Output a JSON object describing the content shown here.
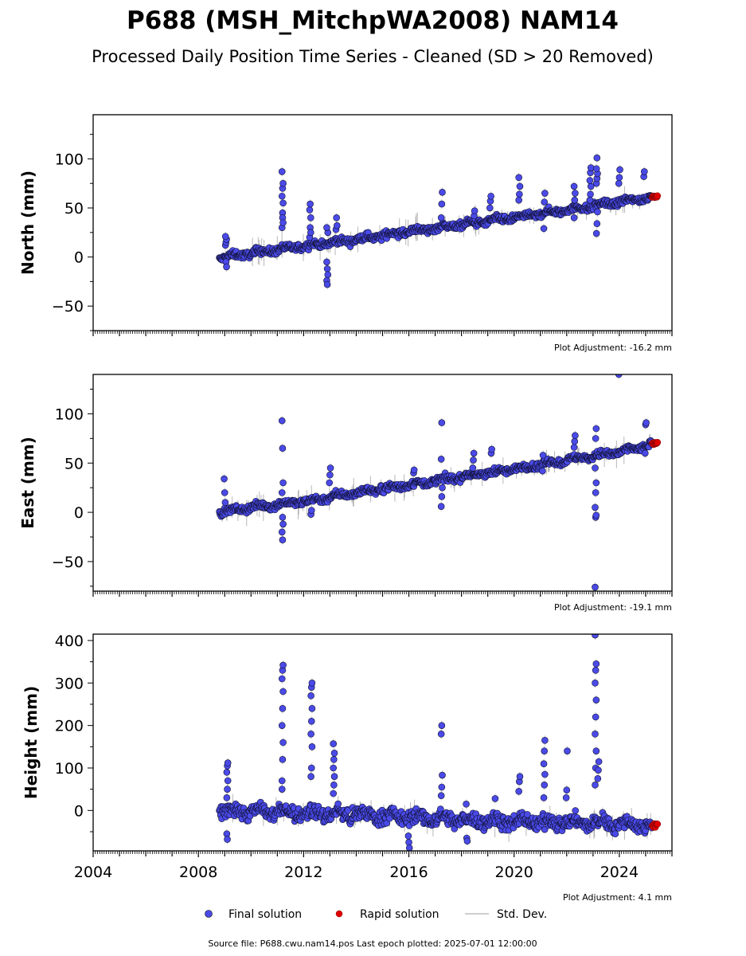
{
  "title": "P688 (MSH_MitchpWA2008) NAM14",
  "subtitle": "Processed Daily Position Time Series - Cleaned (SD > 20 Removed)",
  "source_text": "Source file: P688.cwu.nam14.pos  Last epoch plotted: 2025-07-01 12:00:00",
  "legend": {
    "final": "Final solution",
    "rapid": "Rapid solution",
    "std": "Std. Dev."
  },
  "colors": {
    "final_fill": "#4a4ae8",
    "rapid_fill": "#e00000",
    "std_line": "#9a9a9a"
  },
  "chart_data": [
    {
      "type": "scatter",
      "ylabel": "North (mm)",
      "adjustment": "Plot Adjustment: -16.2 mm",
      "xlim": [
        2004,
        2026
      ],
      "ylim": [
        -75,
        145
      ],
      "yticks": [
        -50,
        0,
        50,
        100
      ],
      "yticklabels": [
        "−50",
        "0",
        "50",
        "100"
      ],
      "trend": [
        [
          2008.8,
          -1
        ],
        [
          2010,
          4
        ],
        [
          2012,
          11
        ],
        [
          2014,
          18
        ],
        [
          2016,
          26
        ],
        [
          2018,
          33
        ],
        [
          2020,
          40
        ],
        [
          2022,
          48
        ],
        [
          2024,
          56
        ],
        [
          2025.4,
          62
        ]
      ],
      "noise": 2.5,
      "spikes": [
        {
          "x": 2009.05,
          "y": [
            12,
            15,
            18,
            21,
            -5,
            -10
          ]
        },
        {
          "x": 2011.2,
          "y": [
            30,
            45,
            55,
            62,
            70,
            75,
            87,
            40,
            35
          ]
        },
        {
          "x": 2012.25,
          "y": [
            20,
            30,
            40,
            48,
            54,
            25
          ]
        },
        {
          "x": 2012.9,
          "y": [
            -5,
            -12,
            -18,
            -24,
            -28,
            25,
            30
          ]
        },
        {
          "x": 2013.25,
          "y": [
            28,
            40,
            32
          ]
        },
        {
          "x": 2017.25,
          "y": [
            40,
            54,
            66
          ]
        },
        {
          "x": 2018.5,
          "y": [
            42,
            47
          ]
        },
        {
          "x": 2019.1,
          "y": [
            50,
            57,
            62
          ]
        },
        {
          "x": 2020.2,
          "y": [
            58,
            64,
            72,
            81
          ]
        },
        {
          "x": 2021.15,
          "y": [
            29,
            56,
            65
          ]
        },
        {
          "x": 2022.3,
          "y": [
            40,
            58,
            65,
            72
          ]
        },
        {
          "x": 2022.9,
          "y": [
            58,
            64,
            72,
            78,
            86,
            91
          ]
        },
        {
          "x": 2023.15,
          "y": [
            24,
            34,
            46,
            75,
            80,
            85,
            90,
            101
          ]
        },
        {
          "x": 2024.0,
          "y": [
            75,
            81,
            89
          ]
        },
        {
          "x": 2024.95,
          "y": [
            82,
            87
          ]
        }
      ],
      "rapid": {
        "x_start": 2025.25,
        "x_end": 2025.45,
        "y": 62
      }
    },
    {
      "type": "scatter",
      "ylabel": "East (mm)",
      "adjustment": "Plot Adjustment: -19.1 mm",
      "xlim": [
        2004,
        2026
      ],
      "ylim": [
        -80,
        140
      ],
      "yticks": [
        -50,
        0,
        50,
        100
      ],
      "yticklabels": [
        "−50",
        "0",
        "50",
        "100"
      ],
      "trend": [
        [
          2008.8,
          0
        ],
        [
          2010,
          5
        ],
        [
          2012,
          11
        ],
        [
          2014,
          20
        ],
        [
          2016,
          28
        ],
        [
          2018,
          36
        ],
        [
          2020,
          44
        ],
        [
          2022,
          53
        ],
        [
          2024,
          61
        ],
        [
          2025.4,
          70
        ]
      ],
      "noise": 2.5,
      "spikes": [
        {
          "x": 2009.0,
          "y": [
            34,
            20,
            10
          ]
        },
        {
          "x": 2011.2,
          "y": [
            93,
            65,
            30,
            20,
            -5,
            -12,
            -20,
            -28
          ]
        },
        {
          "x": 2012.3,
          "y": [
            -2,
            2
          ]
        },
        {
          "x": 2013.0,
          "y": [
            30,
            38,
            45
          ]
        },
        {
          "x": 2016.2,
          "y": [
            40,
            43
          ]
        },
        {
          "x": 2017.25,
          "y": [
            6,
            16,
            25,
            54,
            91
          ]
        },
        {
          "x": 2018.45,
          "y": [
            45,
            53,
            60
          ]
        },
        {
          "x": 2019.15,
          "y": [
            60,
            64
          ]
        },
        {
          "x": 2021.1,
          "y": [
            42,
            58
          ]
        },
        {
          "x": 2022.3,
          "y": [
            66,
            72,
            78
          ]
        },
        {
          "x": 2023.1,
          "y": [
            -76,
            -5,
            -3,
            5,
            20,
            30,
            45,
            75,
            85
          ]
        },
        {
          "x": 2024.0,
          "y": [
            140
          ]
        },
        {
          "x": 2025.0,
          "y": [
            60,
            89,
            91
          ]
        }
      ],
      "rapid": {
        "x_start": 2025.25,
        "x_end": 2025.45,
        "y": 70
      }
    },
    {
      "type": "scatter",
      "ylabel": "Height (mm)",
      "adjustment": "Plot Adjustment: 4.1 mm",
      "xlim": [
        2004,
        2026
      ],
      "ylim": [
        -95,
        415
      ],
      "yticks": [
        0,
        100,
        200,
        300,
        400
      ],
      "yticklabels": [
        "0",
        "100",
        "200",
        "300",
        "400"
      ],
      "xticks": [
        2004,
        2008,
        2012,
        2016,
        2020,
        2024
      ],
      "xticklabels": [
        "2004",
        "2008",
        "2012",
        "2016",
        "2020",
        "2024"
      ],
      "trend": [
        [
          2008.8,
          0
        ],
        [
          2012,
          -5
        ],
        [
          2016,
          -15
        ],
        [
          2018,
          -22
        ],
        [
          2020,
          -25
        ],
        [
          2022,
          -28
        ],
        [
          2024,
          -30
        ],
        [
          2025.4,
          -35
        ]
      ],
      "noise": 12,
      "spikes": [
        {
          "x": 2009.1,
          "y": [
            30,
            50,
            70,
            90,
            105,
            112,
            -55,
            -68
          ]
        },
        {
          "x": 2011.2,
          "y": [
            70,
            120,
            160,
            200,
            240,
            280,
            310,
            330,
            342,
            50
          ]
        },
        {
          "x": 2012.3,
          "y": [
            80,
            100,
            150,
            180,
            210,
            240,
            270,
            290,
            300
          ]
        },
        {
          "x": 2013.15,
          "y": [
            40,
            60,
            80,
            100,
            120,
            135,
            157
          ]
        },
        {
          "x": 2016.0,
          "y": [
            -60,
            -75,
            -88
          ]
        },
        {
          "x": 2017.25,
          "y": [
            35,
            55,
            83,
            180,
            200
          ]
        },
        {
          "x": 2018.2,
          "y": [
            15,
            -65,
            -72
          ]
        },
        {
          "x": 2019.3,
          "y": [
            28
          ]
        },
        {
          "x": 2020.2,
          "y": [
            45,
            68,
            80
          ]
        },
        {
          "x": 2021.15,
          "y": [
            30,
            60,
            85,
            110,
            140,
            165
          ]
        },
        {
          "x": 2022.0,
          "y": [
            30,
            48,
            140
          ]
        },
        {
          "x": 2023.1,
          "y": [
            60,
            100,
            140,
            180,
            220,
            260,
            300,
            330,
            345,
            413
          ]
        },
        {
          "x": 2023.2,
          "y": [
            75,
            95,
            115
          ]
        }
      ],
      "rapid": {
        "x_start": 2025.25,
        "x_end": 2025.45,
        "y": -35
      }
    }
  ]
}
